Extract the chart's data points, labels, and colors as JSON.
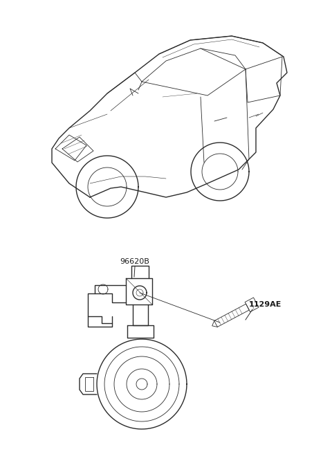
{
  "background_color": "#ffffff",
  "line_color": "#2a2a2a",
  "label_color": "#1a1a1a",
  "fig_width": 4.8,
  "fig_height": 6.56,
  "dpi": 100,
  "label_96620B": "96620B",
  "label_1129AE": "1129AE",
  "label_fontsize": 8.0
}
